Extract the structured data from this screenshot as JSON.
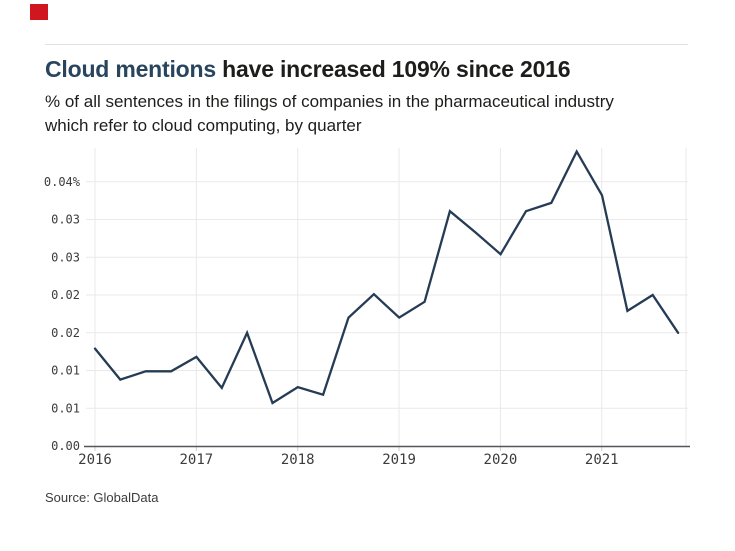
{
  "brand": {
    "mark": "red-square"
  },
  "title": {
    "highlight": "Cloud mentions",
    "rest": " have increased 109% since 2016"
  },
  "subtitle_lines": [
    "% of all sentences in the filings of companies in the pharmaceutical industry",
    "which refer to cloud computing, by quarter"
  ],
  "source": "Source: GlobalData",
  "colors": {
    "accent_red": "#d0161f",
    "title_highlight": "#29455e",
    "text": "#1d1d1b",
    "tick_text": "#3c3c3b",
    "line": "#263c54",
    "grid": "#e9e9e9",
    "axis": "#55565a",
    "rule": "#e0e0e0"
  },
  "chart_data": {
    "type": "line",
    "title": "Cloud mentions have increased 109% since 2016",
    "subtitle": "% of all sentences in the filings of companies in the pharmaceutical industry which refer to cloud computing, by quarter",
    "xlabel": "",
    "ylabel": "% of sentences",
    "unit": "%",
    "grid": true,
    "legend": "none",
    "ylim": [
      0,
      0.04
    ],
    "categories": [
      "2016 Q1",
      "2016 Q2",
      "2016 Q3",
      "2016 Q4",
      "2017 Q1",
      "2017 Q2",
      "2017 Q3",
      "2017 Q4",
      "2018 Q1",
      "2018 Q2",
      "2018 Q3",
      "2018 Q4",
      "2019 Q1",
      "2019 Q2",
      "2019 Q3",
      "2019 Q4",
      "2020 Q1",
      "2020 Q2",
      "2020 Q3",
      "2020 Q4",
      "2021 Q1",
      "2021 Q2",
      "2021 Q3",
      "2021 Q4"
    ],
    "values": [
      0.0129,
      0.0088,
      0.0099,
      0.0099,
      0.0118,
      0.0077,
      0.015,
      0.0057,
      0.0078,
      0.0068,
      0.017,
      0.0201,
      0.017,
      0.0191,
      0.0311,
      0.0283,
      0.0254,
      0.0311,
      0.0322,
      0.039,
      0.0332,
      0.0179,
      0.02,
      0.015
    ],
    "x_year_labels": [
      "2016",
      "2017",
      "2018",
      "2019",
      "2020",
      "2021"
    ],
    "y_ticks": [
      {
        "value": 0.0,
        "label": "0.00"
      },
      {
        "value": 0.005,
        "label": "0.01"
      },
      {
        "value": 0.01,
        "label": "0.01"
      },
      {
        "value": 0.015,
        "label": "0.02"
      },
      {
        "value": 0.02,
        "label": "0.02"
      },
      {
        "value": 0.025,
        "label": "0.03"
      },
      {
        "value": 0.03,
        "label": "0.03"
      },
      {
        "value": 0.035,
        "label": "0.04%"
      }
    ]
  }
}
